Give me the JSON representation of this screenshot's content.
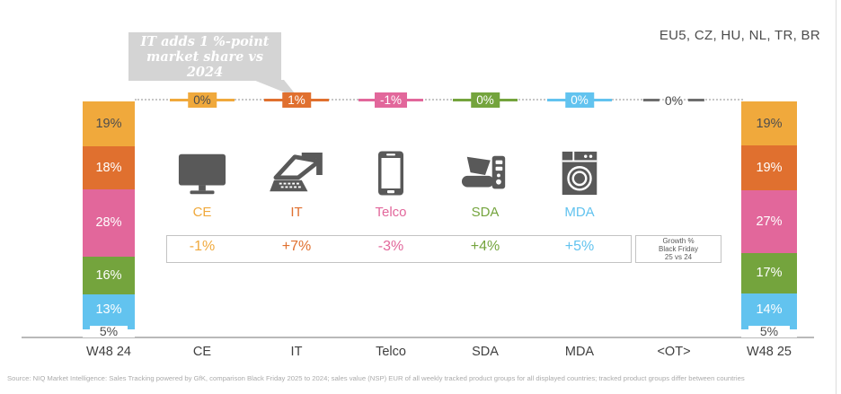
{
  "header": {
    "region_label": "EU5, CZ, HU, NL, TR, BR"
  },
  "callout": {
    "line1": "IT adds 1 %-point",
    "line2": "market share vs 2024"
  },
  "growth_legend": {
    "line1": "Growth %",
    "line2": "Black Friday",
    "line3": "25 vs 24"
  },
  "footer": {
    "source": "Source: NIQ Market Intelligence: Sales Tracking powered by GfK, comparison Black Friday 2025 to 2024; sales value (NSP) EUR of all weekly tracked product groups for all displayed countries; tracked product groups differ between countries"
  },
  "colors": {
    "ce": "#F0A93C",
    "it": "#E0702F",
    "telco": "#E2679B",
    "sda": "#74A43D",
    "mda": "#62C3EF",
    "icon_gray": "#595959",
    "dark_text": "#4D4D4D",
    "bubble_gray": "#D4D4D4",
    "border_gray": "#C3C3C3"
  },
  "chart_data": {
    "type": "bar",
    "subtype": "stacked-market-share-bridge",
    "title": "",
    "legend_position": "none",
    "grid": false,
    "categories": [
      {
        "key": "CE",
        "label": "CE",
        "icon": "monitor-icon",
        "color": "#F0A93C",
        "share_change_pp": "0%",
        "growth": "-1%",
        "badge_text_dark": true
      },
      {
        "key": "IT",
        "label": "IT",
        "icon": "laptop-icon",
        "color": "#E0702F",
        "share_change_pp": "1%",
        "growth": "+7%"
      },
      {
        "key": "Telco",
        "label": "Telco",
        "icon": "smartphone-icon",
        "color": "#E2679B",
        "share_change_pp": "-1%",
        "growth": "-3%"
      },
      {
        "key": "SDA",
        "label": "SDA",
        "icon": "small-appliance-icon",
        "color": "#74A43D",
        "share_change_pp": "0%",
        "growth": "+4%"
      },
      {
        "key": "MDA",
        "label": "MDA",
        "icon": "washing-machine-icon",
        "color": "#62C3EF",
        "share_change_pp": "0%",
        "growth": "+5%"
      }
    ],
    "other": {
      "key": "OT",
      "label": "<OT>",
      "share_change_pp": "0%"
    },
    "bars": [
      {
        "label": "W48 24",
        "segments": [
          {
            "category": "CE",
            "pct": 19
          },
          {
            "category": "IT",
            "pct": 18
          },
          {
            "category": "Telco",
            "pct": 28
          },
          {
            "category": "SDA",
            "pct": 16
          },
          {
            "category": "MDA",
            "pct": 13
          },
          {
            "category": "OT",
            "pct": 5
          }
        ]
      },
      {
        "label": "W48 25",
        "segments": [
          {
            "category": "CE",
            "pct": 19
          },
          {
            "category": "IT",
            "pct": 19
          },
          {
            "category": "Telco",
            "pct": 27
          },
          {
            "category": "SDA",
            "pct": 17
          },
          {
            "category": "MDA",
            "pct": 14
          },
          {
            "category": "OT",
            "pct": 5
          }
        ]
      }
    ],
    "x_axis_labels": [
      "W48 24",
      "CE",
      "IT",
      "Telco",
      "SDA",
      "MDA",
      "<OT>",
      "W48 25"
    ]
  }
}
